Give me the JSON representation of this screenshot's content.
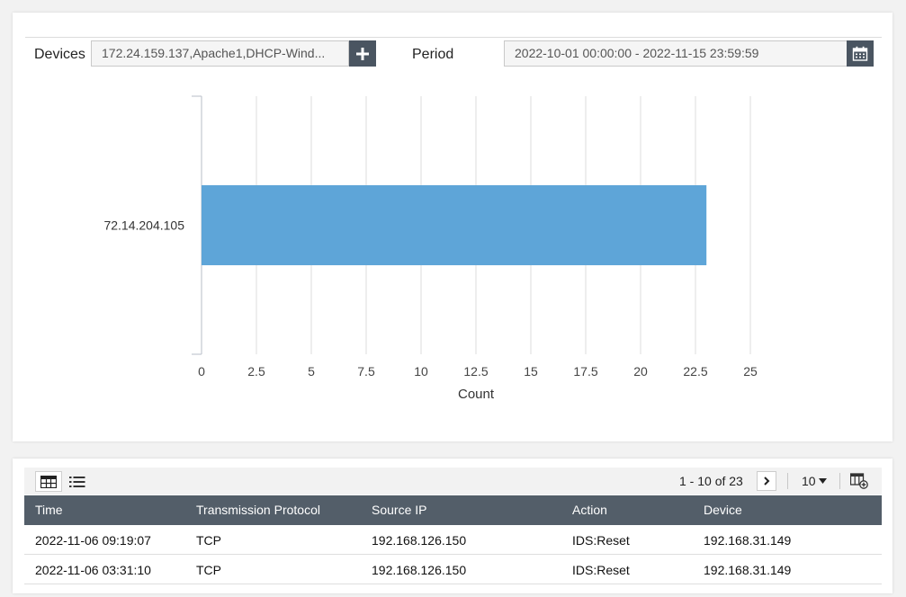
{
  "filters": {
    "devices_label": "Devices",
    "devices_value": "172.24.159.137,Apache1,DHCP-Wind...",
    "add_icon": "plus-icon",
    "period_label": "Period",
    "period_value": "2022-10-01 00:00:00 - 2022-11-15 23:59:59",
    "calendar_icon": "calendar-icon"
  },
  "chart_data": {
    "type": "bar",
    "orientation": "horizontal",
    "categories": [
      "72.14.204.105"
    ],
    "values": [
      23
    ],
    "xlabel": "Count",
    "ylabel": "",
    "xlim": [
      0,
      25
    ],
    "ticks": [
      "0",
      "2.5",
      "5",
      "7.5",
      "10",
      "12.5",
      "15",
      "17.5",
      "20",
      "22.5",
      "25"
    ],
    "grid": true,
    "bar_color": "#5ea5d8"
  },
  "table": {
    "toolbar": {
      "grid_view_icon": "table-grid-icon",
      "list_view_icon": "list-icon",
      "pagination": "1 - 10 of 23",
      "next_icon": "chevron-right-icon",
      "page_size": "10",
      "column_settings_icon": "column-settings-icon"
    },
    "columns": [
      "Time",
      "Transmission Protocol",
      "Source IP",
      "Action",
      "Device"
    ],
    "rows": [
      [
        "2022-11-06 09:19:07",
        "TCP",
        "192.168.126.150",
        "IDS:Reset",
        "192.168.31.149"
      ],
      [
        "2022-11-06 03:31:10",
        "TCP",
        "192.168.126.150",
        "IDS:Reset",
        "192.168.31.149"
      ]
    ],
    "header_color": "#535e69"
  }
}
